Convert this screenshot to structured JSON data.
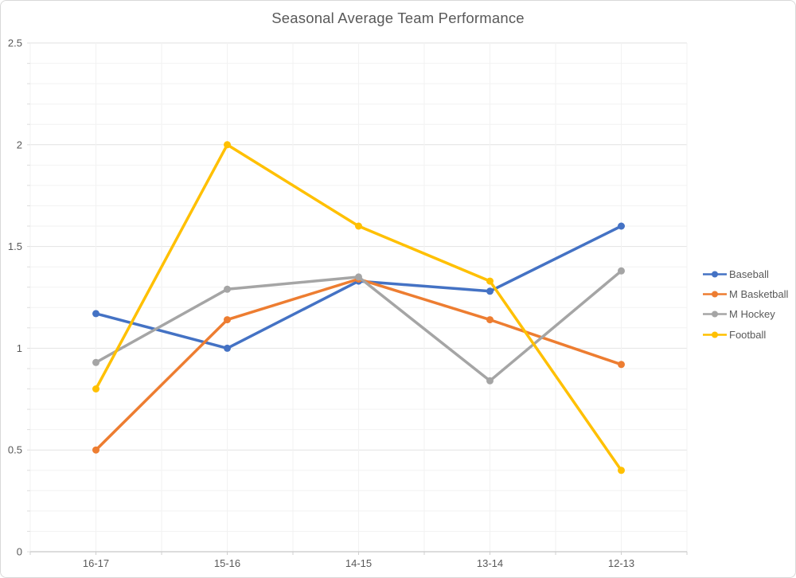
{
  "chart_data": {
    "type": "line",
    "title": "Seasonal Average Team Performance",
    "categories": [
      "16-17",
      "15-16",
      "14-15",
      "13-14",
      "12-13"
    ],
    "series": [
      {
        "name": "Baseball",
        "color": "#4472C4",
        "values": [
          1.17,
          1.0,
          1.33,
          1.28,
          1.6
        ]
      },
      {
        "name": "M Basketball",
        "color": "#ED7D31",
        "values": [
          0.5,
          1.14,
          1.34,
          1.14,
          0.92
        ]
      },
      {
        "name": "M Hockey",
        "color": "#A5A5A5",
        "values": [
          0.93,
          1.29,
          1.35,
          0.84,
          1.38
        ]
      },
      {
        "name": "Football",
        "color": "#FFC000",
        "values": [
          0.8,
          2.0,
          1.6,
          1.33,
          0.4
        ]
      }
    ],
    "ylim": [
      0,
      2.5
    ],
    "y_ticks": [
      "0",
      "0.5",
      "1",
      "1.5",
      "2",
      "2.5"
    ],
    "y_major_unit": 0.5,
    "y_minor_unit": 0.1,
    "grid": "horizontal major+minor, vertical minor",
    "legend_position": "right",
    "marker": "circle",
    "text_color": "#595959",
    "gridline_major_color": "#e2e2e2",
    "gridline_minor_color": "#f2f2f2",
    "axis_line_color": "#b9b9b9",
    "tick_color": "#cfcfcf"
  }
}
